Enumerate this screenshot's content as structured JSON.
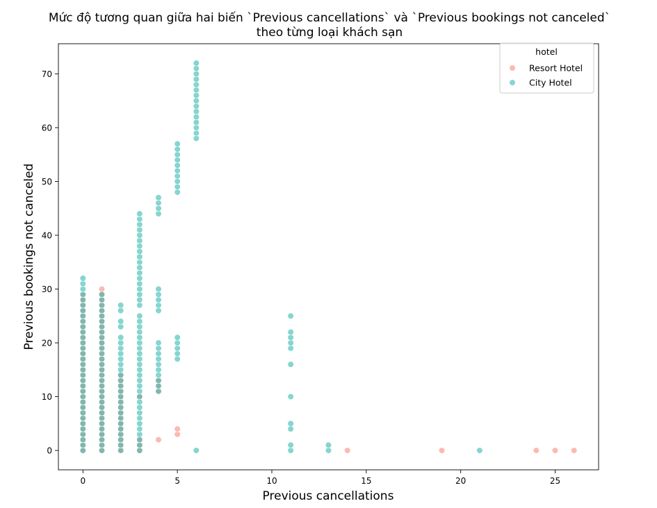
{
  "chart_data": {
    "type": "scatter",
    "title": "Mức độ tương quan giữa hai biến `Previous cancellations` và `Previous bookings not canceled`",
    "subtitle": "theo từng loại khách sạn",
    "xlabel": "Previous cancellations",
    "ylabel": "Previous bookings not canceled",
    "xlim": [
      -1.3,
      27.3
    ],
    "ylim": [
      -3.6,
      75.6
    ],
    "xticks": [
      0,
      5,
      10,
      15,
      20,
      25
    ],
    "yticks": [
      0,
      10,
      20,
      30,
      40,
      50,
      60,
      70
    ],
    "grid": false,
    "legend": {
      "title": "hotel",
      "position": "top-right",
      "entries": [
        "Resort Hotel",
        "City Hotel"
      ]
    },
    "series": [
      {
        "name": "Resort Hotel",
        "color": "#fa8072",
        "points": [
          [
            0,
            0
          ],
          [
            0,
            1
          ],
          [
            0,
            2
          ],
          [
            0,
            3
          ],
          [
            0,
            4
          ],
          [
            0,
            5
          ],
          [
            0,
            6
          ],
          [
            0,
            7
          ],
          [
            0,
            8
          ],
          [
            0,
            9
          ],
          [
            0,
            10
          ],
          [
            0,
            11
          ],
          [
            0,
            12
          ],
          [
            0,
            13
          ],
          [
            0,
            14
          ],
          [
            0,
            15
          ],
          [
            0,
            16
          ],
          [
            0,
            17
          ],
          [
            0,
            18
          ],
          [
            0,
            19
          ],
          [
            0,
            20
          ],
          [
            0,
            21
          ],
          [
            0,
            22
          ],
          [
            0,
            23
          ],
          [
            0,
            24
          ],
          [
            0,
            25
          ],
          [
            0,
            26
          ],
          [
            0,
            27
          ],
          [
            0,
            28
          ],
          [
            0,
            29
          ],
          [
            1,
            0
          ],
          [
            1,
            1
          ],
          [
            1,
            2
          ],
          [
            1,
            3
          ],
          [
            1,
            4
          ],
          [
            1,
            5
          ],
          [
            1,
            6
          ],
          [
            1,
            7
          ],
          [
            1,
            8
          ],
          [
            1,
            9
          ],
          [
            1,
            10
          ],
          [
            1,
            11
          ],
          [
            1,
            12
          ],
          [
            1,
            13
          ],
          [
            1,
            14
          ],
          [
            1,
            15
          ],
          [
            1,
            16
          ],
          [
            1,
            17
          ],
          [
            1,
            18
          ],
          [
            1,
            19
          ],
          [
            1,
            20
          ],
          [
            1,
            21
          ],
          [
            1,
            22
          ],
          [
            1,
            23
          ],
          [
            1,
            24
          ],
          [
            1,
            25
          ],
          [
            1,
            26
          ],
          [
            1,
            27
          ],
          [
            1,
            28
          ],
          [
            1,
            29
          ],
          [
            1,
            30
          ],
          [
            2,
            0
          ],
          [
            2,
            1
          ],
          [
            2,
            2
          ],
          [
            2,
            3
          ],
          [
            2,
            4
          ],
          [
            2,
            5
          ],
          [
            2,
            6
          ],
          [
            2,
            7
          ],
          [
            2,
            8
          ],
          [
            2,
            9
          ],
          [
            2,
            10
          ],
          [
            2,
            11
          ],
          [
            2,
            12
          ],
          [
            2,
            13
          ],
          [
            2,
            14
          ],
          [
            3,
            0
          ],
          [
            3,
            1
          ],
          [
            3,
            2
          ],
          [
            3,
            10
          ],
          [
            4,
            2
          ],
          [
            4,
            11
          ],
          [
            4,
            12
          ],
          [
            4,
            13
          ],
          [
            5,
            3
          ],
          [
            5,
            4
          ],
          [
            14,
            0
          ],
          [
            19,
            0
          ],
          [
            24,
            0
          ],
          [
            25,
            0
          ],
          [
            26,
            0
          ]
        ]
      },
      {
        "name": "City Hotel",
        "color": "#20b2aa",
        "points": [
          [
            0,
            0
          ],
          [
            0,
            1
          ],
          [
            0,
            2
          ],
          [
            0,
            3
          ],
          [
            0,
            4
          ],
          [
            0,
            5
          ],
          [
            0,
            6
          ],
          [
            0,
            7
          ],
          [
            0,
            8
          ],
          [
            0,
            9
          ],
          [
            0,
            10
          ],
          [
            0,
            11
          ],
          [
            0,
            12
          ],
          [
            0,
            13
          ],
          [
            0,
            14
          ],
          [
            0,
            15
          ],
          [
            0,
            16
          ],
          [
            0,
            17
          ],
          [
            0,
            18
          ],
          [
            0,
            19
          ],
          [
            0,
            20
          ],
          [
            0,
            21
          ],
          [
            0,
            22
          ],
          [
            0,
            23
          ],
          [
            0,
            24
          ],
          [
            0,
            25
          ],
          [
            0,
            26
          ],
          [
            0,
            27
          ],
          [
            0,
            28
          ],
          [
            0,
            29
          ],
          [
            0,
            30
          ],
          [
            0,
            31
          ],
          [
            0,
            32
          ],
          [
            1,
            0
          ],
          [
            1,
            1
          ],
          [
            1,
            2
          ],
          [
            1,
            3
          ],
          [
            1,
            4
          ],
          [
            1,
            5
          ],
          [
            1,
            6
          ],
          [
            1,
            7
          ],
          [
            1,
            8
          ],
          [
            1,
            9
          ],
          [
            1,
            10
          ],
          [
            1,
            11
          ],
          [
            1,
            12
          ],
          [
            1,
            13
          ],
          [
            1,
            14
          ],
          [
            1,
            15
          ],
          [
            1,
            16
          ],
          [
            1,
            17
          ],
          [
            1,
            18
          ],
          [
            1,
            19
          ],
          [
            1,
            20
          ],
          [
            1,
            21
          ],
          [
            1,
            22
          ],
          [
            1,
            23
          ],
          [
            1,
            24
          ],
          [
            1,
            25
          ],
          [
            1,
            26
          ],
          [
            1,
            27
          ],
          [
            1,
            28
          ],
          [
            1,
            29
          ],
          [
            2,
            0
          ],
          [
            2,
            1
          ],
          [
            2,
            2
          ],
          [
            2,
            3
          ],
          [
            2,
            4
          ],
          [
            2,
            5
          ],
          [
            2,
            6
          ],
          [
            2,
            7
          ],
          [
            2,
            8
          ],
          [
            2,
            9
          ],
          [
            2,
            10
          ],
          [
            2,
            11
          ],
          [
            2,
            12
          ],
          [
            2,
            13
          ],
          [
            2,
            14
          ],
          [
            2,
            15
          ],
          [
            2,
            16
          ],
          [
            2,
            17
          ],
          [
            2,
            18
          ],
          [
            2,
            19
          ],
          [
            2,
            20
          ],
          [
            2,
            21
          ],
          [
            2,
            23
          ],
          [
            2,
            24
          ],
          [
            2,
            26
          ],
          [
            2,
            27
          ],
          [
            3,
            0
          ],
          [
            3,
            1
          ],
          [
            3,
            2
          ],
          [
            3,
            3
          ],
          [
            3,
            4
          ],
          [
            3,
            5
          ],
          [
            3,
            6
          ],
          [
            3,
            7
          ],
          [
            3,
            8
          ],
          [
            3,
            9
          ],
          [
            3,
            10
          ],
          [
            3,
            11
          ],
          [
            3,
            12
          ],
          [
            3,
            13
          ],
          [
            3,
            14
          ],
          [
            3,
            15
          ],
          [
            3,
            16
          ],
          [
            3,
            17
          ],
          [
            3,
            18
          ],
          [
            3,
            19
          ],
          [
            3,
            20
          ],
          [
            3,
            21
          ],
          [
            3,
            22
          ],
          [
            3,
            23
          ],
          [
            3,
            24
          ],
          [
            3,
            25
          ],
          [
            3,
            27
          ],
          [
            3,
            28
          ],
          [
            3,
            29
          ],
          [
            3,
            30
          ],
          [
            3,
            31
          ],
          [
            3,
            32
          ],
          [
            3,
            33
          ],
          [
            3,
            34
          ],
          [
            3,
            35
          ],
          [
            3,
            36
          ],
          [
            3,
            37
          ],
          [
            3,
            38
          ],
          [
            3,
            39
          ],
          [
            3,
            40
          ],
          [
            3,
            41
          ],
          [
            3,
            42
          ],
          [
            3,
            43
          ],
          [
            3,
            44
          ],
          [
            4,
            11
          ],
          [
            4,
            12
          ],
          [
            4,
            13
          ],
          [
            4,
            14
          ],
          [
            4,
            15
          ],
          [
            4,
            16
          ],
          [
            4,
            17
          ],
          [
            4,
            18
          ],
          [
            4,
            19
          ],
          [
            4,
            20
          ],
          [
            4,
            26
          ],
          [
            4,
            27
          ],
          [
            4,
            28
          ],
          [
            4,
            29
          ],
          [
            4,
            30
          ],
          [
            4,
            44
          ],
          [
            4,
            45
          ],
          [
            4,
            46
          ],
          [
            4,
            47
          ],
          [
            5,
            17
          ],
          [
            5,
            18
          ],
          [
            5,
            19
          ],
          [
            5,
            20
          ],
          [
            5,
            21
          ],
          [
            5,
            48
          ],
          [
            5,
            49
          ],
          [
            5,
            50
          ],
          [
            5,
            51
          ],
          [
            5,
            52
          ],
          [
            5,
            53
          ],
          [
            5,
            54
          ],
          [
            5,
            55
          ],
          [
            5,
            56
          ],
          [
            5,
            57
          ],
          [
            6,
            0
          ],
          [
            6,
            58
          ],
          [
            6,
            59
          ],
          [
            6,
            60
          ],
          [
            6,
            61
          ],
          [
            6,
            62
          ],
          [
            6,
            63
          ],
          [
            6,
            64
          ],
          [
            6,
            65
          ],
          [
            6,
            66
          ],
          [
            6,
            67
          ],
          [
            6,
            68
          ],
          [
            6,
            69
          ],
          [
            6,
            70
          ],
          [
            6,
            71
          ],
          [
            6,
            72
          ],
          [
            11,
            0
          ],
          [
            11,
            1
          ],
          [
            11,
            4
          ],
          [
            11,
            5
          ],
          [
            11,
            10
          ],
          [
            11,
            16
          ],
          [
            11,
            19
          ],
          [
            11,
            20
          ],
          [
            11,
            21
          ],
          [
            11,
            22
          ],
          [
            11,
            25
          ],
          [
            13,
            0
          ],
          [
            13,
            1
          ],
          [
            21,
            0
          ]
        ]
      }
    ]
  }
}
